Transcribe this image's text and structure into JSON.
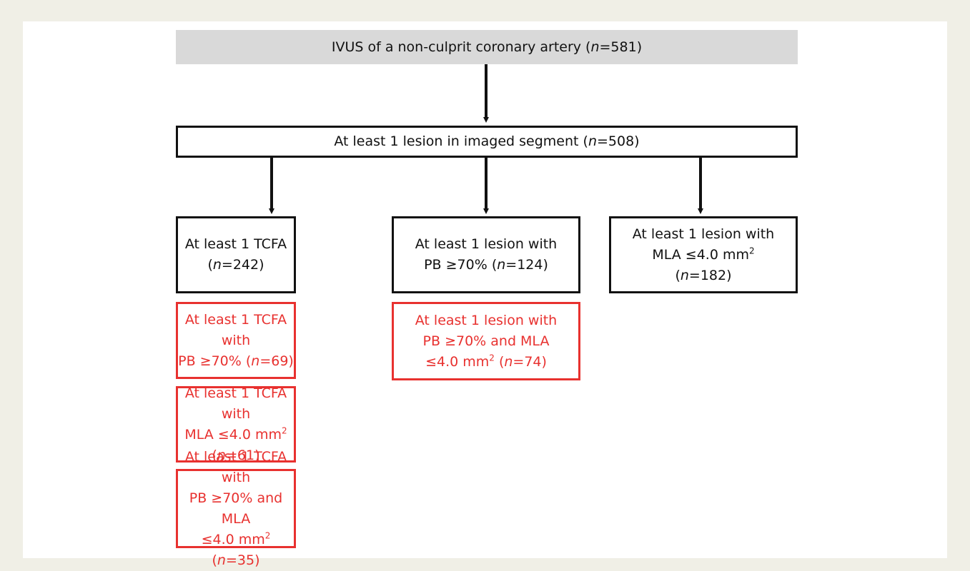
{
  "nodes": [
    {
      "lines": [
        [
          "IVUS of a non-culprit coronary artery (",
          "n",
          "=581)"
        ]
      ]
    },
    {
      "lines": [
        [
          "At least 1 lesion in imaged segment (",
          "n",
          "=508)"
        ]
      ]
    },
    {
      "lines": [
        [
          "At least 1 TCFA"
        ],
        [
          "(",
          "n",
          "=242)"
        ]
      ]
    },
    {
      "lines": [
        [
          "At least 1 lesion with"
        ],
        [
          "PB ≥70% (",
          "n",
          "=124)"
        ]
      ]
    },
    {
      "lines": [
        [
          "At least 1 lesion with"
        ],
        [
          "MLA ≤4.0 mm",
          "2"
        ],
        [
          "(",
          "n",
          "=182)"
        ]
      ]
    },
    {
      "lines": [
        [
          "At least 1 TCFA with"
        ],
        [
          "PB ≥70% (",
          "n",
          "=69)"
        ]
      ]
    },
    {
      "lines": [
        [
          "At least 1 lesion with"
        ],
        [
          "PB ≥70% and MLA"
        ],
        [
          "≤4.0 mm",
          "2",
          " (",
          "n",
          "=74)"
        ]
      ]
    },
    {
      "lines": [
        [
          "At least 1 TCFA with"
        ],
        [
          "MLA ≤4.0 mm",
          "2",
          " (",
          "n",
          "=61)"
        ]
      ]
    },
    {
      "lines": [
        [
          "At least 1 TCFA with"
        ],
        [
          "PB ≥70% and MLA"
        ],
        [
          "≤4.0 mm",
          "2",
          " (",
          "n",
          "=35)"
        ]
      ]
    }
  ]
}
